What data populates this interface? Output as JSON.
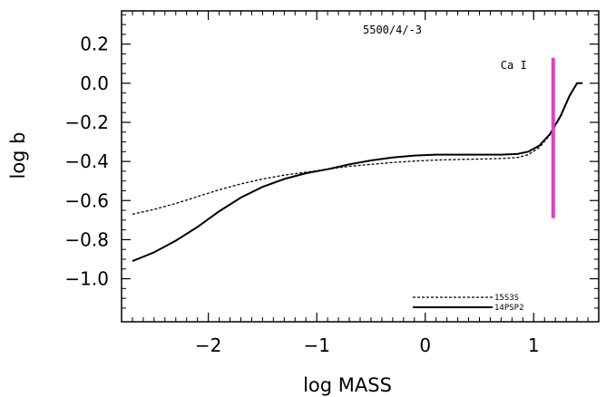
{
  "chart_data": {
    "type": "line",
    "title": "5500/4/-3",
    "xlabel": "log MASS",
    "ylabel": "log b",
    "xlim": [
      -2.8,
      1.6
    ],
    "ylim": [
      -1.22,
      0.37
    ],
    "x_ticks": [
      -2,
      -1,
      0,
      1
    ],
    "x_tick_labels": [
      "−2",
      "−1",
      "0",
      "1"
    ],
    "y_ticks": [
      0.2,
      0.0,
      -0.2,
      -0.4,
      -0.6,
      -0.8,
      -1.0
    ],
    "y_tick_labels": [
      "0.2",
      "0.0",
      "−0.2",
      "−0.4",
      "−0.6",
      "−0.8",
      "−1.0"
    ],
    "grid": false,
    "legend_position": "bottom-right",
    "annotation": {
      "text": "Ca I",
      "line_x": 1.18,
      "line_y_range": [
        -0.69,
        0.13
      ],
      "color": "#e040c0"
    },
    "series": [
      {
        "name": "15S3S",
        "style": "dashed",
        "x": [
          -2.7,
          -2.5,
          -2.3,
          -2.1,
          -1.9,
          -1.7,
          -1.5,
          -1.3,
          -1.1,
          -0.9,
          -0.7,
          -0.5,
          -0.3,
          -0.1,
          0.1,
          0.3,
          0.5,
          0.7,
          0.85,
          0.95,
          1.05,
          1.15,
          1.25,
          1.33,
          1.4,
          1.45
        ],
        "y": [
          -0.67,
          -0.645,
          -0.615,
          -0.58,
          -0.545,
          -0.515,
          -0.49,
          -0.47,
          -0.455,
          -0.44,
          -0.425,
          -0.415,
          -0.405,
          -0.398,
          -0.393,
          -0.39,
          -0.388,
          -0.385,
          -0.38,
          -0.365,
          -0.33,
          -0.265,
          -0.17,
          -0.07,
          0.0,
          0.0
        ]
      },
      {
        "name": "14PSP2",
        "style": "solid",
        "x": [
          -2.7,
          -2.5,
          -2.3,
          -2.1,
          -1.9,
          -1.7,
          -1.5,
          -1.3,
          -1.1,
          -0.9,
          -0.7,
          -0.5,
          -0.3,
          -0.1,
          0.1,
          0.3,
          0.5,
          0.7,
          0.85,
          0.95,
          1.05,
          1.15,
          1.25,
          1.33,
          1.4,
          1.45
        ],
        "y": [
          -0.91,
          -0.865,
          -0.805,
          -0.735,
          -0.655,
          -0.585,
          -0.53,
          -0.49,
          -0.46,
          -0.44,
          -0.415,
          -0.395,
          -0.38,
          -0.37,
          -0.365,
          -0.365,
          -0.365,
          -0.365,
          -0.362,
          -0.35,
          -0.32,
          -0.26,
          -0.165,
          -0.065,
          0.0,
          0.0
        ]
      }
    ]
  }
}
